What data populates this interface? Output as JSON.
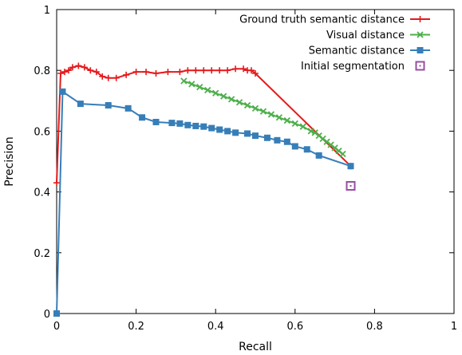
{
  "chart_data": {
    "type": "line",
    "xlabel": "Recall",
    "ylabel": "Precision",
    "xlim": [
      0,
      1
    ],
    "ylim": [
      0,
      1
    ],
    "x_ticks": [
      "0",
      "0.2",
      "0.4",
      "0.6",
      "0.8",
      "1"
    ],
    "y_ticks": [
      "0",
      "0.2",
      "0.4",
      "0.6",
      "0.8",
      "1"
    ],
    "x_tick_values": [
      0,
      0.2,
      0.4,
      0.6,
      0.8,
      1
    ],
    "y_tick_values": [
      0,
      0.2,
      0.4,
      0.6,
      0.8,
      1
    ],
    "grid": false,
    "legend_position": "top-right",
    "series": [
      {
        "name": "Ground truth semantic distance",
        "color": "#e41a1c",
        "marker": "plus",
        "x": [
          0.0,
          0.01,
          0.02,
          0.03,
          0.04,
          0.055,
          0.07,
          0.085,
          0.1,
          0.115,
          0.13,
          0.15,
          0.175,
          0.2,
          0.225,
          0.25,
          0.28,
          0.31,
          0.33,
          0.35,
          0.37,
          0.39,
          0.41,
          0.43,
          0.45,
          0.47,
          0.48,
          0.49,
          0.5,
          0.74
        ],
        "y": [
          0.43,
          0.79,
          0.795,
          0.8,
          0.81,
          0.815,
          0.81,
          0.8,
          0.795,
          0.78,
          0.775,
          0.775,
          0.785,
          0.795,
          0.795,
          0.79,
          0.795,
          0.795,
          0.8,
          0.8,
          0.8,
          0.8,
          0.8,
          0.8,
          0.805,
          0.805,
          0.8,
          0.8,
          0.79,
          0.485
        ]
      },
      {
        "name": "Visual distance",
        "color": "#4daf4a",
        "marker": "x",
        "x": [
          0.32,
          0.34,
          0.36,
          0.38,
          0.4,
          0.42,
          0.44,
          0.46,
          0.48,
          0.5,
          0.52,
          0.54,
          0.56,
          0.58,
          0.6,
          0.62,
          0.64,
          0.65,
          0.66,
          0.67,
          0.68,
          0.69,
          0.7,
          0.71,
          0.72
        ],
        "y": [
          0.765,
          0.755,
          0.745,
          0.735,
          0.725,
          0.715,
          0.705,
          0.695,
          0.685,
          0.675,
          0.665,
          0.655,
          0.645,
          0.635,
          0.625,
          0.615,
          0.6,
          0.595,
          0.585,
          0.575,
          0.565,
          0.555,
          0.545,
          0.535,
          0.525
        ]
      },
      {
        "name": "Semantic distance",
        "color": "#377eb8",
        "marker": "square",
        "x": [
          0.0,
          0.015,
          0.06,
          0.13,
          0.18,
          0.215,
          0.25,
          0.29,
          0.31,
          0.33,
          0.35,
          0.37,
          0.39,
          0.41,
          0.43,
          0.45,
          0.48,
          0.5,
          0.53,
          0.555,
          0.58,
          0.6,
          0.63,
          0.66,
          0.74
        ],
        "y": [
          0.0,
          0.73,
          0.69,
          0.685,
          0.675,
          0.645,
          0.63,
          0.627,
          0.625,
          0.62,
          0.617,
          0.615,
          0.61,
          0.605,
          0.6,
          0.595,
          0.592,
          0.585,
          0.578,
          0.57,
          0.565,
          0.55,
          0.54,
          0.52,
          0.485
        ]
      },
      {
        "name": "Initial segmentation",
        "color": "#984ea3",
        "marker": "open-square",
        "x": [
          0.74
        ],
        "y": [
          0.42
        ]
      }
    ]
  }
}
